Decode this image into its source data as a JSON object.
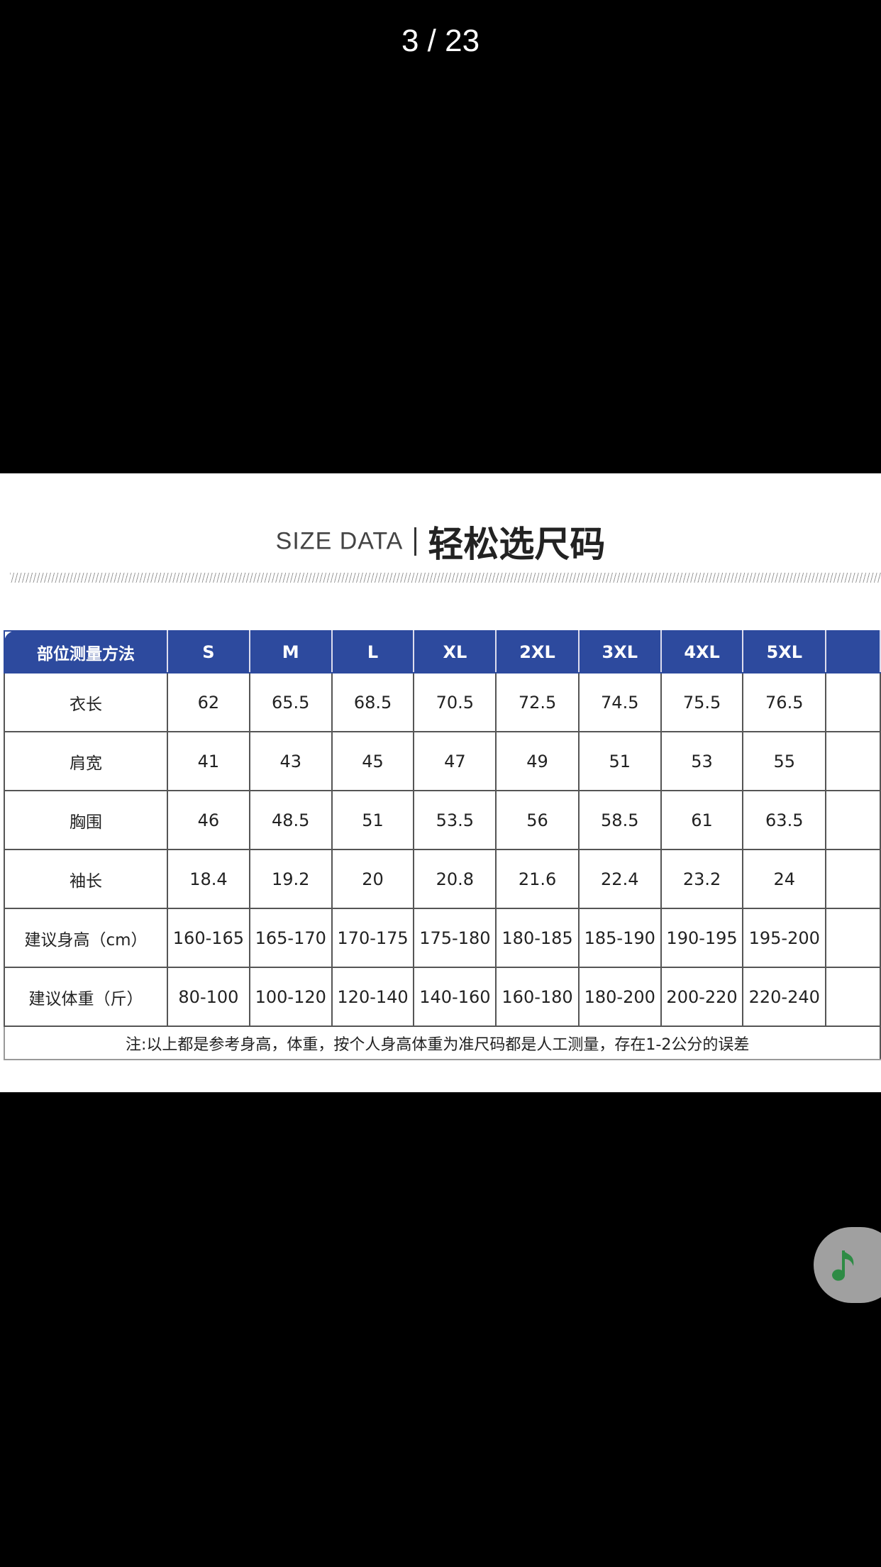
{
  "viewer": {
    "counter": "3 / 23"
  },
  "image": {
    "title_en": "SIZE DATA",
    "title_cn": "轻松选尺码",
    "table": {
      "header": [
        "部位测量方法",
        "S",
        "M",
        "L",
        "XL",
        "2XL",
        "3XL",
        "4XL",
        "5XL",
        ""
      ],
      "rows": [
        [
          "衣长",
          "62",
          "65.5",
          "68.5",
          "70.5",
          "72.5",
          "74.5",
          "75.5",
          "76.5",
          ""
        ],
        [
          "肩宽",
          "41",
          "43",
          "45",
          "47",
          "49",
          "51",
          "53",
          "55",
          ""
        ],
        [
          "胸围",
          "46",
          "48.5",
          "51",
          "53.5",
          "56",
          "58.5",
          "61",
          "63.5",
          ""
        ],
        [
          "袖长",
          "18.4",
          "19.2",
          "20",
          "20.8",
          "21.6",
          "22.4",
          "23.2",
          "24",
          ""
        ],
        [
          "建议身高（cm）",
          "160-165",
          "165-170",
          "170-175",
          "175-180",
          "180-185",
          "185-190",
          "190-195",
          "195-200",
          ""
        ],
        [
          "建议体重（斤）",
          "80-100",
          "100-120",
          "120-140",
          "140-160",
          "160-180",
          "180-200",
          "200-220",
          "220-240",
          ""
        ]
      ],
      "note": "注:以上都是参考身高，体重，按个人身高体重为准尺码都是人工测量，存在1-2公分的误差"
    },
    "colors": {
      "header_bg": "#2d4a9e"
    }
  },
  "music_button": {
    "icon": "music-note-icon",
    "color": "#2e8b45"
  }
}
